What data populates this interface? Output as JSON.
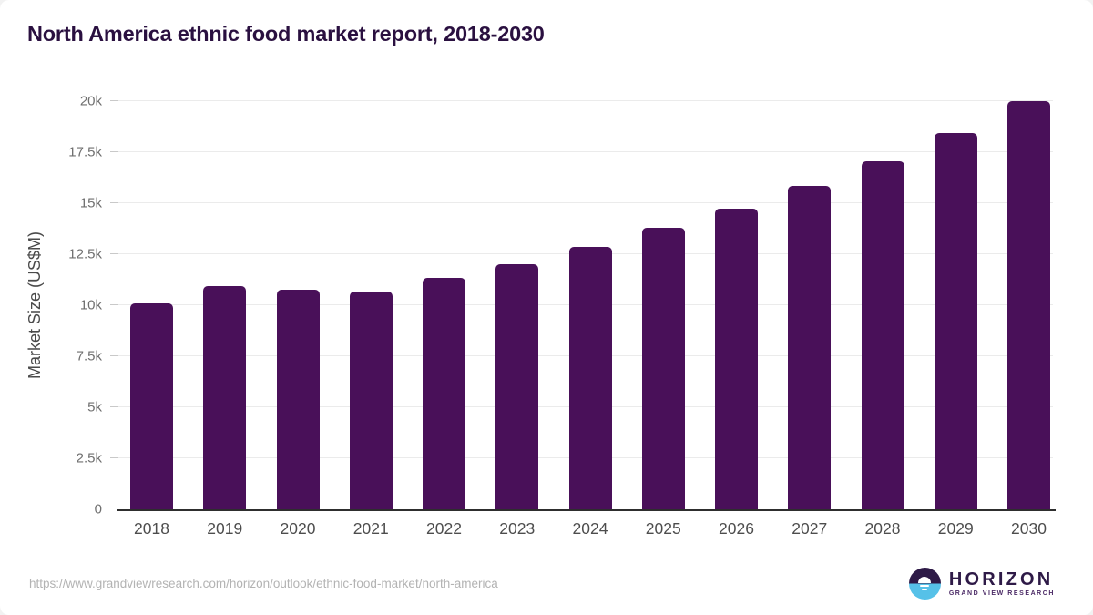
{
  "page": {
    "title": "North America ethnic food market report, 2018-2030"
  },
  "chart_data": {
    "type": "bar",
    "title": "North America ethnic food market report, 2018-2030",
    "categories": [
      "2018",
      "2019",
      "2020",
      "2021",
      "2022",
      "2023",
      "2024",
      "2025",
      "2026",
      "2027",
      "2028",
      "2029",
      "2030"
    ],
    "values": [
      10100,
      10950,
      10780,
      10650,
      11330,
      12020,
      12870,
      13780,
      14730,
      15850,
      17060,
      18440,
      19980
    ],
    "xlabel": "",
    "ylabel": "Market Size (US$M)",
    "ylim": [
      0,
      20000
    ],
    "yticks": [
      0,
      2500,
      5000,
      7500,
      10000,
      12500,
      15000,
      17500,
      20000
    ],
    "ytick_labels": [
      "0",
      "2.5k",
      "5k",
      "7.5k",
      "10k",
      "12.5k",
      "15k",
      "17.5k",
      "20k"
    ],
    "grid": true,
    "legend": false
  },
  "footer": {
    "source_url": "https://www.grandviewresearch.com/horizon/outlook/ethnic-food-market/north-america",
    "logo": {
      "title": "HORIZON",
      "subtitle": "GRAND VIEW RESEARCH"
    }
  },
  "colors": {
    "bar": "#491059",
    "title": "#2a1040",
    "axis_line": "#2e2e2e",
    "gridline": "#ebebeb",
    "tick": "#c9c9c9",
    "y_label": "#6f6f6f",
    "x_label": "#4d4d4d",
    "axis_title": "#4a4a4a",
    "source_text": "#b3b3b3",
    "logo_dark": "#2e1a47",
    "logo_blue": "#56c1e8"
  }
}
